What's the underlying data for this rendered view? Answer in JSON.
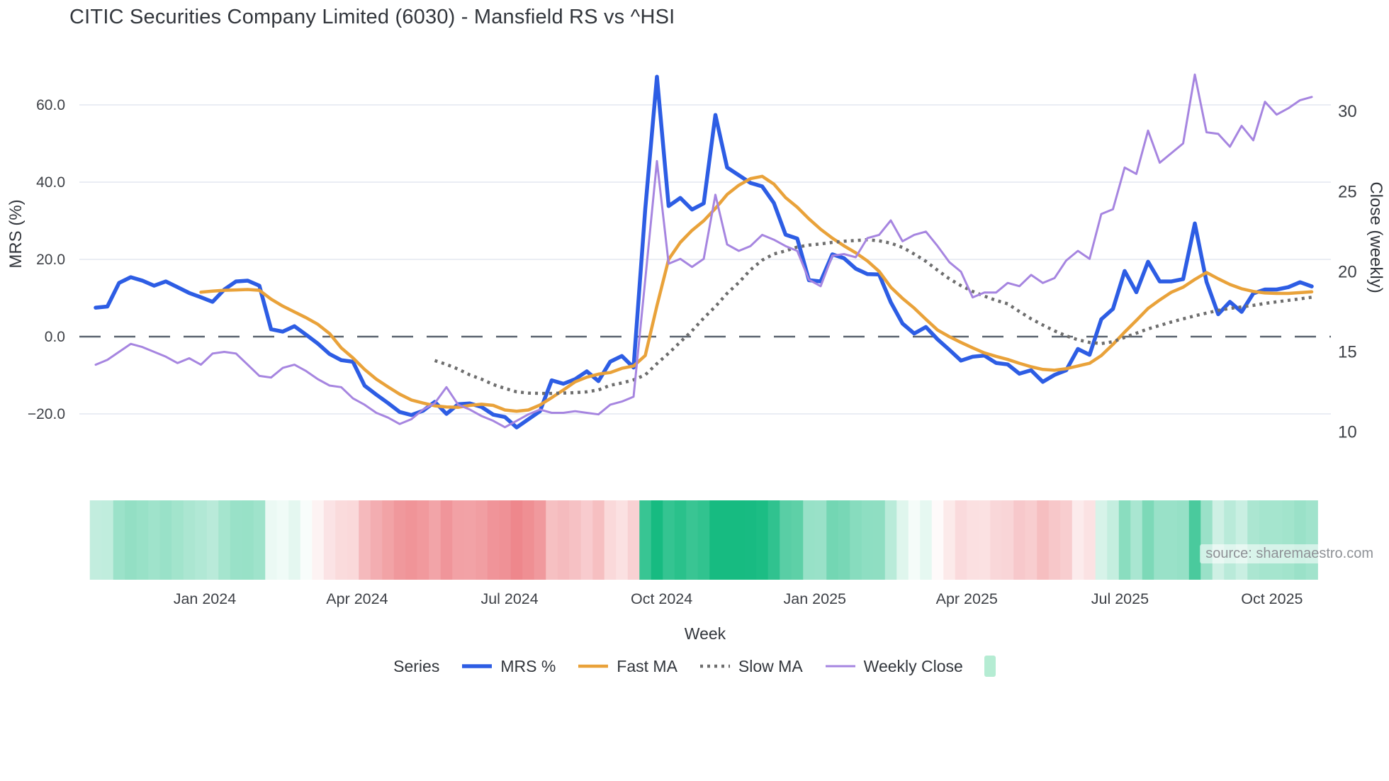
{
  "title": "CITIC Securities Company Limited (6030) - Mansfield RS vs ^HSI",
  "source": "source: sharemaestro.com",
  "axes": {
    "left": {
      "title": "MRS (%)",
      "tick_labels": [
        "60.0",
        "40.0",
        "20.0",
        "0.0",
        "−20.0"
      ],
      "tick_values": [
        60,
        40,
        20,
        0,
        -20
      ]
    },
    "right": {
      "title": "Close (weekly)",
      "tick_labels": [
        "30",
        "25",
        "20",
        "15",
        "10"
      ],
      "tick_values": [
        30,
        25,
        20,
        15,
        10
      ]
    },
    "x": {
      "title": "Week",
      "tick_labels": [
        "Jan 2024",
        "Apr 2024",
        "Jul 2024",
        "Oct 2024",
        "Jan 2025",
        "Apr 2025",
        "Jul 2025",
        "Oct 2025"
      ],
      "tick_week_positions": [
        9.33,
        22.36,
        35.4,
        48.4,
        61.5,
        74.5,
        87.6,
        100.6
      ]
    }
  },
  "legend": {
    "title": "Series",
    "items": [
      {
        "label": "MRS %",
        "color": "#2d5de4",
        "style": "solid"
      },
      {
        "label": "Fast MA",
        "color": "#e9a23a",
        "style": "solid"
      },
      {
        "label": "Slow MA",
        "color": "#6e6e6e",
        "style": "dotted"
      },
      {
        "label": "Weekly Close",
        "color": "#a685e0",
        "style": "solid"
      }
    ],
    "swatch_color": "#b5ecd3"
  },
  "chart_data": {
    "type": "line",
    "title": "CITIC Securities Company Limited (6030) - Mansfield RS vs ^HSI",
    "xlabel": "Week",
    "ylabel_left": "MRS (%)",
    "ylabel_right": "Close (weekly)",
    "x_unit": "week",
    "start_week": "2023-10-30",
    "weeks": 105,
    "ylim_left": [
      -26.6,
      72.5
    ],
    "ylim_right": [
      9.5,
      33.4
    ],
    "grid": "horizontal-light",
    "zero_line": "dashed",
    "legend_position": "bottom",
    "series": [
      {
        "name": "MRS %",
        "axis": "left",
        "color": "#2d5de4",
        "dash": "solid",
        "width": 5.5,
        "values": [
          7.5,
          7.8,
          13.9,
          15.4,
          14.5,
          13.2,
          14.3,
          12.8,
          11.3,
          10.2,
          9.0,
          12.2,
          14.3,
          14.5,
          13.2,
          1.9,
          1.3,
          2.7,
          0.5,
          -1.8,
          -4.5,
          -6.1,
          -6.5,
          -12.7,
          -15.0,
          -17.2,
          -19.5,
          -20.3,
          -19.2,
          -16.9,
          -20.0,
          -17.5,
          -17.3,
          -18.2,
          -20.2,
          -20.8,
          -23.5,
          -21.4,
          -19.3,
          -11.3,
          -12.2,
          -11.0,
          -9.0,
          -11.5,
          -6.5,
          -5.0,
          -8.0,
          33.0,
          67.3,
          33.8,
          35.9,
          32.9,
          34.5,
          57.4,
          43.8,
          41.8,
          39.8,
          38.9,
          34.6,
          26.4,
          25.4,
          14.6,
          14.3,
          21.3,
          20.3,
          17.6,
          16.2,
          16.1,
          8.9,
          3.4,
          0.8,
          2.5,
          -0.7,
          -3.4,
          -6.2,
          -5.2,
          -4.9,
          -6.8,
          -7.2,
          -9.6,
          -8.7,
          -11.7,
          -9.9,
          -8.7,
          -3.2,
          -4.7,
          4.5,
          7.2,
          17.0,
          11.5,
          19.4,
          14.3,
          14.3,
          14.9,
          29.3,
          14.2,
          5.8,
          9.0,
          6.4,
          11.2,
          12.2,
          12.2,
          12.8,
          14.1,
          13.0
        ]
      },
      {
        "name": "Fast MA",
        "axis": "left",
        "color": "#e9a23a",
        "dash": "solid",
        "width": 4.5,
        "values": [
          null,
          null,
          null,
          null,
          null,
          null,
          null,
          null,
          null,
          11.5,
          11.8,
          12.0,
          12.1,
          12.2,
          12.0,
          9.7,
          7.9,
          6.4,
          4.9,
          3.2,
          0.8,
          -2.9,
          -5.5,
          -8.5,
          -11.0,
          -13.0,
          -14.9,
          -16.4,
          -17.2,
          -17.9,
          -18.2,
          -18.3,
          -17.8,
          -17.5,
          -17.8,
          -19.0,
          -19.3,
          -19.0,
          -17.7,
          -15.8,
          -13.8,
          -11.7,
          -10.5,
          -9.7,
          -9.3,
          -8.2,
          -7.6,
          -4.9,
          8.0,
          20.0,
          24.4,
          27.5,
          30.0,
          33.2,
          36.8,
          39.2,
          40.9,
          41.5,
          39.5,
          36.0,
          33.5,
          30.5,
          27.8,
          25.5,
          23.5,
          21.7,
          19.6,
          16.9,
          12.8,
          9.9,
          7.4,
          4.5,
          1.7,
          0.0,
          -1.5,
          -2.9,
          -4.2,
          -5.1,
          -5.9,
          -6.9,
          -7.8,
          -8.5,
          -8.7,
          -8.3,
          -7.6,
          -6.9,
          -4.9,
          -2.0,
          1.2,
          4.2,
          7.3,
          9.5,
          11.5,
          12.8,
          14.8,
          16.6,
          15.0,
          13.5,
          12.4,
          11.7,
          11.3,
          11.2,
          11.2,
          11.4,
          11.6
        ]
      },
      {
        "name": "Slow MA",
        "axis": "left",
        "color": "#6e6e6e",
        "dash": "dotted",
        "width": 4.5,
        "values": [
          null,
          null,
          null,
          null,
          null,
          null,
          null,
          null,
          null,
          null,
          null,
          null,
          null,
          null,
          null,
          null,
          null,
          null,
          null,
          null,
          null,
          null,
          null,
          null,
          null,
          null,
          null,
          null,
          null,
          -6.2,
          -7.2,
          -8.4,
          -9.9,
          -11.0,
          -12.4,
          -13.4,
          -14.3,
          -14.6,
          -14.7,
          -14.7,
          -14.6,
          -14.5,
          -14.3,
          -13.8,
          -12.6,
          -12.0,
          -11.2,
          -9.9,
          -7.0,
          -4.3,
          -1.4,
          1.5,
          4.8,
          7.8,
          11.2,
          14.0,
          17.3,
          19.8,
          21.4,
          22.2,
          23.2,
          23.7,
          24.0,
          24.4,
          24.7,
          24.9,
          25.1,
          24.8,
          24.2,
          23.1,
          21.4,
          19.5,
          17.2,
          15.0,
          13.2,
          11.7,
          10.5,
          9.4,
          8.5,
          6.5,
          4.6,
          3.0,
          1.5,
          0.2,
          -0.8,
          -1.5,
          -1.8,
          -1.3,
          -0.2,
          0.9,
          2.0,
          2.9,
          3.8,
          4.6,
          5.4,
          6.1,
          6.8,
          7.3,
          7.7,
          8.1,
          8.6,
          9.0,
          9.4,
          9.8,
          10.2
        ]
      },
      {
        "name": "Weekly Close",
        "axis": "right",
        "color": "#a685e0",
        "dash": "solid",
        "width": 3,
        "values": [
          14.2,
          14.5,
          15.0,
          15.5,
          15.3,
          15.0,
          14.7,
          14.3,
          14.6,
          14.2,
          14.9,
          15.0,
          14.9,
          14.2,
          13.5,
          13.4,
          14.0,
          14.2,
          13.8,
          13.3,
          12.9,
          12.8,
          12.1,
          11.7,
          11.2,
          10.9,
          10.5,
          10.8,
          11.4,
          11.8,
          12.8,
          11.7,
          11.4,
          11.0,
          10.7,
          10.3,
          10.7,
          11.1,
          11.4,
          11.2,
          11.2,
          11.3,
          11.2,
          11.1,
          11.7,
          11.9,
          12.2,
          19.5,
          26.9,
          20.5,
          20.8,
          20.3,
          20.8,
          24.8,
          21.7,
          21.3,
          21.6,
          22.3,
          22.0,
          21.6,
          21.3,
          19.5,
          19.1,
          21.0,
          21.1,
          20.9,
          22.1,
          22.3,
          23.2,
          21.9,
          22.3,
          22.5,
          21.6,
          20.6,
          20.0,
          18.4,
          18.7,
          18.7,
          19.3,
          19.1,
          19.8,
          19.3,
          19.6,
          20.7,
          21.3,
          20.8,
          23.6,
          23.9,
          26.5,
          26.1,
          28.8,
          26.8,
          27.4,
          28.0,
          32.3,
          28.7,
          28.6,
          27.8,
          29.1,
          28.2,
          30.6,
          29.8,
          30.2,
          30.7,
          30.9
        ]
      }
    ],
    "heatmap_strip": {
      "based_on": "MRS %",
      "positive_color": "#17bb81",
      "negative_color": "#ee878c",
      "neutral_color": "#ffffff",
      "positive_saturation_at": 40,
      "negative_saturation_at": -23
    }
  }
}
